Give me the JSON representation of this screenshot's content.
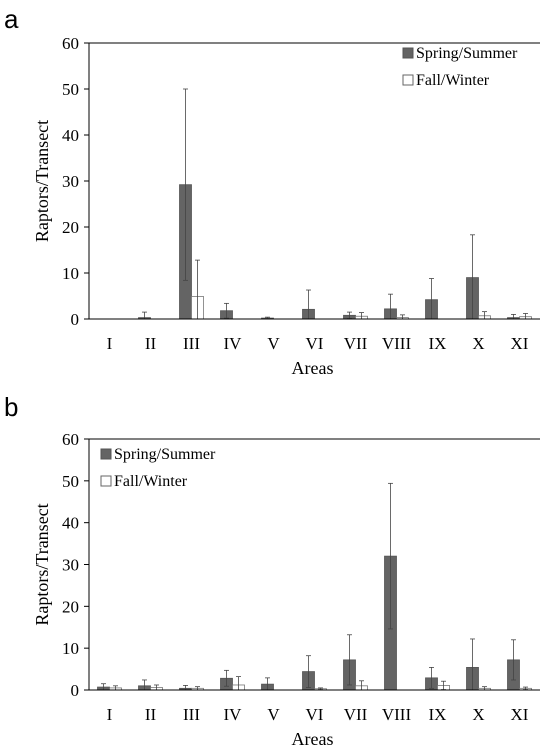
{
  "chart_data": [
    {
      "panel": "a",
      "type": "bar",
      "xlabel": "Areas",
      "ylabel": "Raptors/Transect",
      "ylim": [
        0,
        60
      ],
      "yticks": [
        0,
        10,
        20,
        30,
        40,
        50,
        60
      ],
      "categories": [
        "I",
        "II",
        "III",
        "IV",
        "V",
        "VI",
        "VII",
        "VIII",
        "IX",
        "X",
        "XI"
      ],
      "legend_position": "top-right",
      "series": [
        {
          "name": "Spring/Summer",
          "color": "#646464",
          "values": [
            0,
            0.3,
            29.2,
            1.8,
            0.2,
            2.1,
            0.8,
            2.2,
            4.2,
            9.0,
            0.3
          ],
          "errors": [
            0,
            1.2,
            20.8,
            1.6,
            0.2,
            4.2,
            0.7,
            3.2,
            4.6,
            9.3,
            0.7
          ]
        },
        {
          "name": "Fall/Winter",
          "color": "#ffffff",
          "values": [
            0,
            0,
            4.9,
            0,
            0,
            0,
            0.6,
            0.3,
            0,
            0.7,
            0.5
          ],
          "errors": [
            0,
            0,
            7.9,
            0,
            0,
            0,
            0.8,
            0.6,
            0,
            0.9,
            0.7
          ]
        }
      ]
    },
    {
      "panel": "b",
      "type": "bar",
      "xlabel": "Areas",
      "ylabel": "Raptors/Transect",
      "ylim": [
        0,
        60
      ],
      "yticks": [
        0,
        10,
        20,
        30,
        40,
        50,
        60
      ],
      "categories": [
        "I",
        "II",
        "III",
        "IV",
        "V",
        "VI",
        "VII",
        "VIII",
        "IX",
        "X",
        "XI"
      ],
      "legend_position": "top-left",
      "series": [
        {
          "name": "Spring/Summer",
          "color": "#646464",
          "values": [
            0.7,
            1.0,
            0.4,
            2.8,
            1.4,
            4.4,
            7.2,
            32.0,
            2.9,
            5.4,
            7.2
          ],
          "errors": [
            0.8,
            1.4,
            0.7,
            1.9,
            1.5,
            3.8,
            6.0,
            17.4,
            2.5,
            6.8,
            4.8
          ]
        },
        {
          "name": "Fall/Winter",
          "color": "#ffffff",
          "values": [
            0.5,
            0.6,
            0.4,
            1.2,
            0,
            0.3,
            1.0,
            0,
            1.1,
            0.4,
            0.4
          ],
          "errors": [
            0.5,
            0.6,
            0.4,
            2.0,
            0,
            0.2,
            1.2,
            0,
            1.0,
            0.4,
            0.3
          ]
        }
      ]
    }
  ]
}
